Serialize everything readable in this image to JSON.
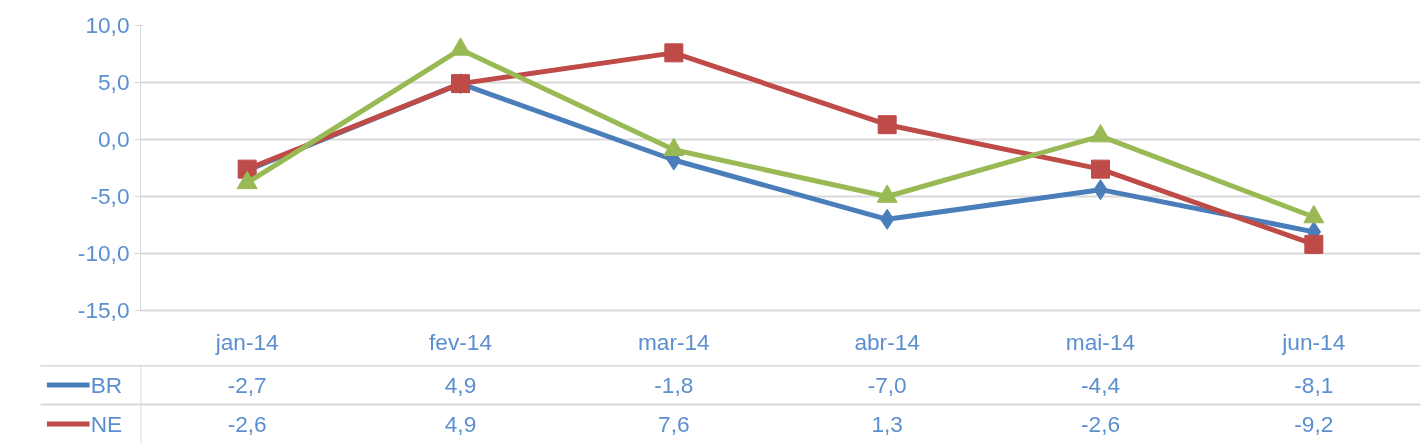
{
  "chart_data": {
    "type": "line",
    "categories": [
      "jan-14",
      "fev-14",
      "mar-14",
      "abr-14",
      "mai-14",
      "jun-14"
    ],
    "ylim": [
      -15,
      10
    ],
    "yticks": [
      {
        "value": -15,
        "label": "-15,0"
      },
      {
        "value": -10,
        "label": "-10,0"
      },
      {
        "value": -5,
        "label": "-5,0"
      },
      {
        "value": 0,
        "label": "0,0"
      },
      {
        "value": 5,
        "label": "5,0"
      },
      {
        "value": 10,
        "label": "10,0"
      }
    ],
    "grid": "y",
    "legend": "bottom",
    "line_style": "solid",
    "series": [
      {
        "name": "BR",
        "color": "#4a7ebb",
        "marker": "diamond",
        "values": [
          -2.7,
          4.9,
          -1.8,
          -7.0,
          -4.4,
          -8.1
        ],
        "value_labels": [
          "-2,7",
          "4,9",
          "-1,8",
          "-7,0",
          "-4,4",
          "-8,1"
        ]
      },
      {
        "name": "NE",
        "color": "#be4b48",
        "marker": "square",
        "values": [
          -2.6,
          4.9,
          7.6,
          1.3,
          -2.6,
          -9.2
        ],
        "value_labels": [
          "-2,6",
          "4,9",
          "7,6",
          "1,3",
          "-2,6",
          "-9,2"
        ]
      },
      {
        "color": "#98b954",
        "marker": "triangle",
        "values": [
          -3.8,
          7.9,
          -0.9,
          -5.0,
          0.3,
          -6.8
        ]
      }
    ]
  }
}
